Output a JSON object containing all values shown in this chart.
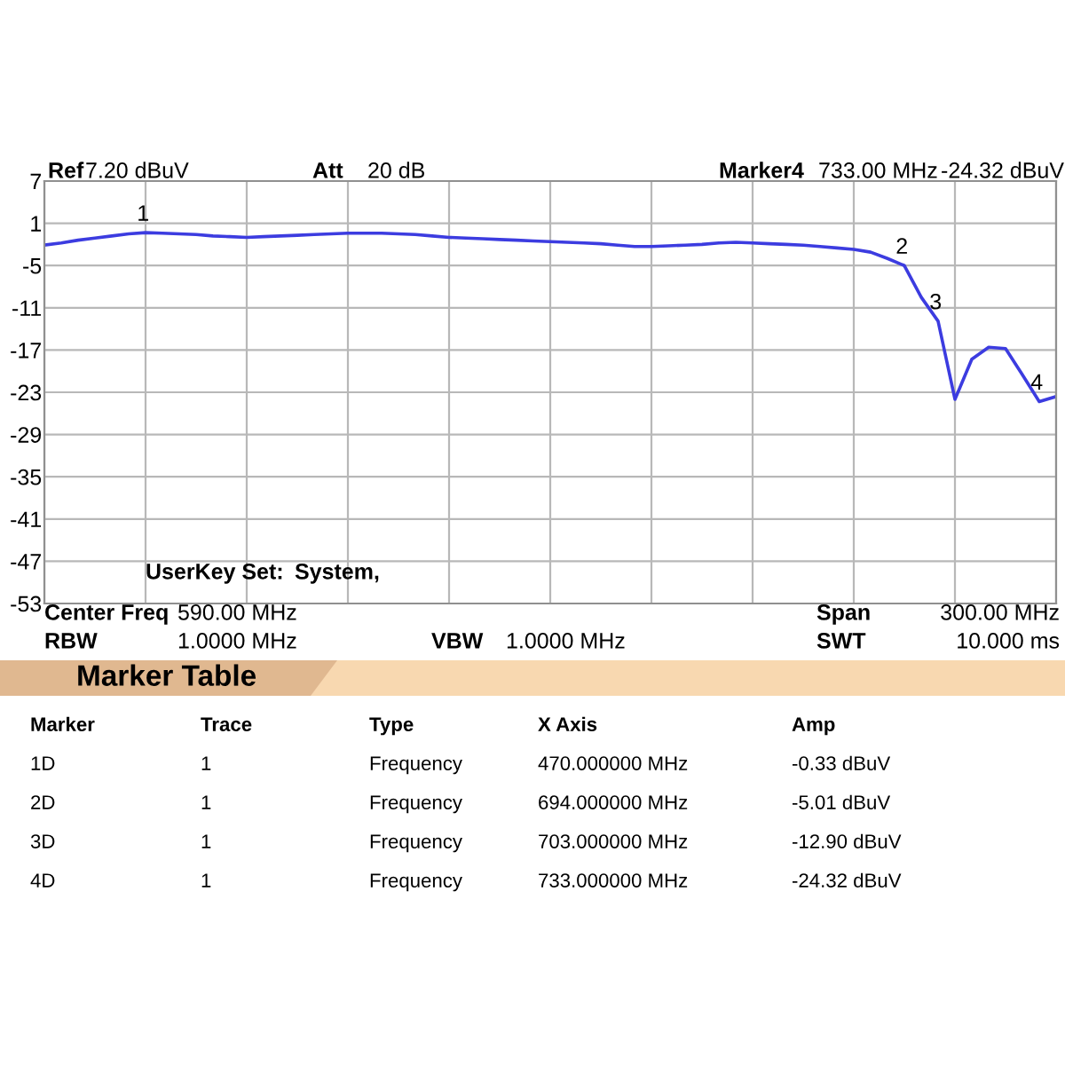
{
  "chart_data": {
    "type": "line",
    "categories": [
      null,
      null,
      null,
      null,
      null,
      null,
      null,
      null,
      null,
      null,
      null,
      null,
      null,
      null,
      null,
      null,
      null,
      null,
      null,
      null,
      null,
      null,
      null,
      null,
      null,
      null,
      null,
      null,
      null,
      null,
      null,
      null,
      null,
      null,
      null,
      null,
      null,
      null,
      null,
      null,
      null,
      null,
      null,
      null,
      null,
      null,
      null,
      null,
      null,
      null,
      null,
      null,
      null,
      null,
      null,
      null,
      null,
      null,
      null,
      null,
      null
    ],
    "series": [
      {
        "color": "#3c3ce0",
        "values": [
          -2.1,
          -1.8,
          -1.4,
          -1.1,
          -0.8,
          -0.5,
          -0.33,
          -0.4,
          -0.5,
          -0.6,
          -0.8,
          -0.9,
          -1.0,
          -0.9,
          -0.8,
          -0.7,
          -0.6,
          -0.5,
          -0.4,
          -0.4,
          -0.4,
          -0.5,
          -0.6,
          -0.8,
          -1.0,
          -1.1,
          -1.2,
          -1.3,
          -1.4,
          -1.5,
          -1.6,
          -1.7,
          -1.8,
          -1.9,
          -2.1,
          -2.3,
          -2.3,
          -2.2,
          -2.1,
          -2.0,
          -1.8,
          -1.7,
          -1.8,
          -1.9,
          -2.0,
          -2.1,
          -2.3,
          -2.5,
          -2.7,
          -3.1,
          -4.0,
          -5.01,
          -9.5,
          -12.9,
          -24.0,
          -18.3,
          -16.6,
          -16.8,
          -20.5,
          -24.32,
          -23.6
        ]
      }
    ],
    "ylim": [
      -53,
      7
    ],
    "yticks": [
      7,
      1,
      -5,
      -11,
      -17,
      -23,
      -29,
      -35,
      -41,
      -47,
      -53
    ],
    "grid": true,
    "annotations": [
      {
        "text": "1",
        "y": -0.33
      },
      {
        "text": "2",
        "y": -5.01
      },
      {
        "text": "3",
        "y": -12.9
      },
      {
        "text": "4",
        "y": -24.32
      },
      "Ref",
      "7.20 dBuV",
      "Att",
      "20 dB",
      "Marker4",
      "733.00 MHz",
      "-24.32 dBuV",
      "UserKey Set:",
      "System,",
      "Center Freq",
      "590.00 MHz",
      "Span",
      "300.00 MHz",
      "RBW",
      "1.0000 MHz",
      "VBW",
      "1.0000 MHz",
      "SWT",
      "10.000 ms",
      "Marker Table",
      "Marker",
      "Trace",
      "Type",
      "X Axis",
      "Amp",
      "1D",
      "1",
      "Frequency",
      "470.000000 MHz",
      "-0.33 dBuV",
      "2D",
      "1",
      "Frequency",
      "694.000000 MHz",
      "-5.01 dBuV",
      "3D",
      "1",
      "Frequency",
      "703.000000 MHz",
      "-12.90 dBuV",
      "4D",
      "1",
      "Frequency",
      "733.000000 MHz",
      "-24.32 dBuV"
    ]
  }
}
